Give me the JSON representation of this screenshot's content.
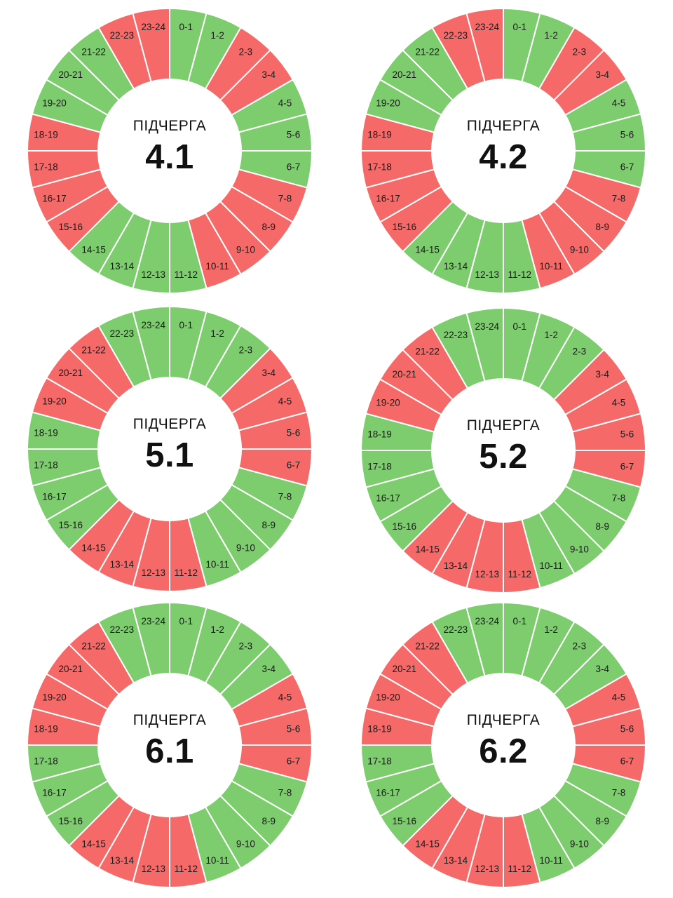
{
  "caption": "ПІДЧЕРГА",
  "colors": {
    "on": "#7dcc6e",
    "off": "#f56a68",
    "separator": "#ffffff"
  },
  "hour_labels": [
    "0-1",
    "1-2",
    "2-3",
    "3-4",
    "4-5",
    "5-6",
    "6-7",
    "7-8",
    "8-9",
    "9-10",
    "10-11",
    "11-12",
    "12-13",
    "13-14",
    "14-15",
    "15-16",
    "16-17",
    "17-18",
    "18-19",
    "19-20",
    "20-21",
    "21-22",
    "22-23",
    "23-24"
  ],
  "queues": [
    {
      "name": "4.1",
      "schedule": [
        "on",
        "on",
        "off",
        "off",
        "on",
        "on",
        "on",
        "off",
        "off",
        "off",
        "off",
        "on",
        "on",
        "on",
        "on",
        "off",
        "off",
        "off",
        "off",
        "on",
        "on",
        "on",
        "off",
        "off"
      ]
    },
    {
      "name": "4.2",
      "schedule": [
        "on",
        "on",
        "off",
        "off",
        "on",
        "on",
        "on",
        "off",
        "off",
        "off",
        "off",
        "on",
        "on",
        "on",
        "on",
        "off",
        "off",
        "off",
        "off",
        "on",
        "on",
        "on",
        "off",
        "off"
      ]
    },
    {
      "name": "5.1",
      "schedule": [
        "on",
        "on",
        "on",
        "off",
        "off",
        "off",
        "off",
        "on",
        "on",
        "on",
        "on",
        "off",
        "off",
        "off",
        "off",
        "on",
        "on",
        "on",
        "on",
        "off",
        "off",
        "off",
        "on",
        "on"
      ]
    },
    {
      "name": "5.2",
      "schedule": [
        "on",
        "on",
        "on",
        "off",
        "off",
        "off",
        "off",
        "on",
        "on",
        "on",
        "on",
        "off",
        "off",
        "off",
        "off",
        "on",
        "on",
        "on",
        "on",
        "off",
        "off",
        "off",
        "on",
        "on"
      ]
    },
    {
      "name": "6.1",
      "schedule": [
        "on",
        "on",
        "on",
        "on",
        "off",
        "off",
        "off",
        "on",
        "on",
        "on",
        "on",
        "off",
        "off",
        "off",
        "off",
        "on",
        "on",
        "on",
        "off",
        "off",
        "off",
        "off",
        "on",
        "on"
      ]
    },
    {
      "name": "6.2",
      "schedule": [
        "on",
        "on",
        "on",
        "on",
        "off",
        "off",
        "off",
        "on",
        "on",
        "on",
        "on",
        "off",
        "off",
        "off",
        "off",
        "on",
        "on",
        "on",
        "off",
        "off",
        "off",
        "off",
        "on",
        "on"
      ]
    }
  ]
}
